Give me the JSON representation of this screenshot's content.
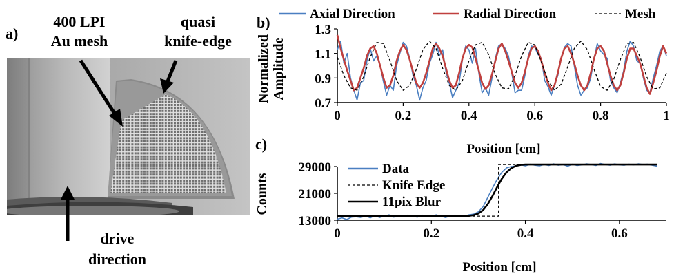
{
  "panel_a": {
    "label": "a)",
    "annotation_mesh_line1": "400 LPI",
    "annotation_mesh_line2": "Au mesh",
    "annotation_edge_line1": "quasi",
    "annotation_edge_line2": "knife-edge",
    "annotation_drive_line1": "drive",
    "annotation_drive_line2": "direction"
  },
  "chart_data": [
    {
      "panel": "b)",
      "type": "line",
      "xlabel": "Position [cm]",
      "ylabel_line1": "Normalized",
      "ylabel_line2": "Amplitude",
      "xlim": [
        0,
        1
      ],
      "ylim": [
        0.7,
        1.3
      ],
      "xticks": [
        "0",
        "0.2",
        "0.4",
        "0.6",
        "0.8",
        "1"
      ],
      "yticks": [
        "0.7",
        "0.9",
        "1.1",
        "1.3"
      ],
      "legend_position": "top",
      "series": [
        {
          "name": "Axial Direction",
          "color": "#4a7fc1",
          "x": [
            0,
            0.01,
            0.02,
            0.03,
            0.04,
            0.05,
            0.06,
            0.07,
            0.08,
            0.09,
            0.1,
            0.11,
            0.12,
            0.13,
            0.14,
            0.15,
            0.16,
            0.17,
            0.18,
            0.19,
            0.2,
            0.21,
            0.22,
            0.23,
            0.24,
            0.25,
            0.26,
            0.27,
            0.28,
            0.29,
            0.3,
            0.31,
            0.32,
            0.33,
            0.34,
            0.35,
            0.36,
            0.37,
            0.38,
            0.39,
            0.4,
            0.41,
            0.42,
            0.43,
            0.44,
            0.45,
            0.46,
            0.47,
            0.48,
            0.49,
            0.5,
            0.51,
            0.52,
            0.53,
            0.54,
            0.55,
            0.56,
            0.57,
            0.58,
            0.59,
            0.6,
            0.61,
            0.62,
            0.63,
            0.64,
            0.65,
            0.66,
            0.67,
            0.68,
            0.69,
            0.7,
            0.71,
            0.72,
            0.73,
            0.74,
            0.75,
            0.76,
            0.77,
            0.78,
            0.79,
            0.8,
            0.81,
            0.82,
            0.83,
            0.84,
            0.85,
            0.86,
            0.87,
            0.88,
            0.89,
            0.9,
            0.91,
            0.92,
            0.93,
            0.94,
            0.95,
            0.96,
            0.97,
            0.98,
            0.99,
            1.0
          ],
          "y": [
            1.13,
            1.2,
            1.02,
            1.1,
            0.9,
            0.8,
            0.72,
            0.86,
            0.88,
            1.04,
            1.14,
            1.04,
            1.08,
            1.0,
            0.87,
            0.76,
            0.84,
            0.8,
            1.0,
            1.1,
            1.19,
            1.16,
            1.06,
            0.92,
            0.84,
            0.72,
            0.82,
            0.88,
            1.02,
            1.09,
            1.19,
            1.08,
            1.13,
            0.95,
            0.86,
            0.74,
            0.8,
            0.86,
            1.05,
            1.16,
            1.13,
            1.02,
            1.14,
            0.94,
            0.78,
            0.82,
            0.76,
            0.9,
            1.06,
            1.16,
            1.18,
            1.14,
            1.08,
            0.94,
            0.78,
            0.8,
            0.8,
            0.92,
            1.08,
            1.16,
            1.15,
            1.09,
            1.06,
            0.88,
            0.83,
            0.76,
            0.84,
            0.92,
            1.06,
            1.15,
            1.18,
            1.16,
            1.0,
            0.84,
            0.76,
            0.8,
            0.82,
            0.9,
            1.06,
            1.18,
            1.12,
            1.09,
            1.06,
            0.88,
            0.82,
            0.78,
            0.86,
            0.96,
            1.12,
            1.2,
            1.16,
            1.04,
            1.02,
            0.9,
            0.8,
            0.78,
            0.9,
            1.0,
            1.12,
            1.16,
            1.08
          ]
        },
        {
          "name": "Radial Direction",
          "color": "#c0403e",
          "x": [
            0,
            0.01,
            0.02,
            0.03,
            0.04,
            0.05,
            0.06,
            0.07,
            0.08,
            0.09,
            0.1,
            0.11,
            0.12,
            0.13,
            0.14,
            0.15,
            0.16,
            0.17,
            0.18,
            0.19,
            0.2,
            0.21,
            0.22,
            0.23,
            0.24,
            0.25,
            0.26,
            0.27,
            0.28,
            0.29,
            0.3,
            0.31,
            0.32,
            0.33,
            0.34,
            0.35,
            0.36,
            0.37,
            0.38,
            0.39,
            0.4,
            0.41,
            0.42,
            0.43,
            0.44,
            0.45,
            0.46,
            0.47,
            0.48,
            0.49,
            0.5,
            0.51,
            0.52,
            0.53,
            0.54,
            0.55,
            0.56,
            0.57,
            0.58,
            0.59,
            0.6,
            0.61,
            0.62,
            0.63,
            0.64,
            0.65,
            0.66,
            0.67,
            0.68,
            0.69,
            0.7,
            0.71,
            0.72,
            0.73,
            0.74,
            0.75,
            0.76,
            0.77,
            0.78,
            0.79,
            0.8,
            0.81,
            0.82,
            0.83,
            0.84,
            0.85,
            0.86,
            0.87,
            0.88,
            0.89,
            0.9,
            0.91,
            0.92,
            0.93,
            0.94,
            0.95,
            0.96,
            0.97,
            0.98,
            0.99,
            1.0
          ],
          "y": [
            1.25,
            1.14,
            1.05,
            0.96,
            0.88,
            0.8,
            0.82,
            0.9,
            0.98,
            1.08,
            1.14,
            1.16,
            1.1,
            1.0,
            0.9,
            0.82,
            0.84,
            0.92,
            1.04,
            1.12,
            1.17,
            1.13,
            1.05,
            0.95,
            0.86,
            0.82,
            0.86,
            0.94,
            1.04,
            1.14,
            1.18,
            1.14,
            1.08,
            0.98,
            0.88,
            0.82,
            0.84,
            0.94,
            1.06,
            1.14,
            1.17,
            1.15,
            1.06,
            0.96,
            0.86,
            0.81,
            0.84,
            0.93,
            1.04,
            1.14,
            1.18,
            1.12,
            1.04,
            0.95,
            0.86,
            0.82,
            0.86,
            0.95,
            1.06,
            1.14,
            1.16,
            1.12,
            1.04,
            0.94,
            0.86,
            0.8,
            0.84,
            0.94,
            1.06,
            1.14,
            1.16,
            1.1,
            1.02,
            0.92,
            0.84,
            0.8,
            0.84,
            0.94,
            1.06,
            1.14,
            1.16,
            1.12,
            1.02,
            0.92,
            0.84,
            0.8,
            0.84,
            0.94,
            1.06,
            1.14,
            1.14,
            1.08,
            1.02,
            0.92,
            0.82,
            0.77,
            0.86,
            0.96,
            1.08,
            1.16,
            1.1
          ]
        },
        {
          "name": "Mesh",
          "color": "#000000",
          "dash": true,
          "x": [
            0,
            0.02,
            0.04,
            0.06,
            0.08,
            0.1,
            0.12,
            0.14,
            0.16,
            0.18,
            0.2,
            0.22,
            0.24,
            0.26,
            0.28,
            0.3,
            0.32,
            0.34,
            0.36,
            0.38,
            0.4,
            0.42,
            0.44,
            0.46,
            0.48,
            0.5,
            0.52,
            0.54,
            0.56,
            0.58,
            0.6,
            0.62,
            0.64,
            0.66,
            0.68,
            0.7,
            0.72,
            0.74,
            0.76,
            0.78,
            0.8,
            0.82,
            0.84,
            0.86,
            0.88,
            0.9,
            0.92,
            0.94,
            0.96,
            0.98,
            1.0
          ],
          "y": [
            1.07,
            0.92,
            0.82,
            0.8,
            0.91,
            1.07,
            1.19,
            1.18,
            1.04,
            0.88,
            0.8,
            0.84,
            0.97,
            1.13,
            1.2,
            1.14,
            0.98,
            0.84,
            0.8,
            0.88,
            1.04,
            1.17,
            1.19,
            1.09,
            0.93,
            0.82,
            0.81,
            0.92,
            1.08,
            1.19,
            1.17,
            1.03,
            0.88,
            0.8,
            0.85,
            0.99,
            1.14,
            1.2,
            1.13,
            0.97,
            0.83,
            0.8,
            0.89,
            1.05,
            1.18,
            1.19,
            1.07,
            0.91,
            0.81,
            0.82,
            0.94
          ]
        }
      ]
    },
    {
      "panel": "c)",
      "type": "line",
      "xlabel": "Position [cm]",
      "ylabel": "Counts",
      "xlim": [
        0,
        0.7
      ],
      "ylim": [
        13000,
        29000
      ],
      "xticks": [
        "0",
        "0.2",
        "0.4",
        "0.6"
      ],
      "yticks": [
        "13000",
        "21000",
        "29000"
      ],
      "legend_position": "top-left",
      "series": [
        {
          "name": "Data",
          "color": "#4a7fc1",
          "x": [
            0,
            0.01,
            0.02,
            0.03,
            0.04,
            0.05,
            0.06,
            0.07,
            0.08,
            0.09,
            0.1,
            0.11,
            0.12,
            0.13,
            0.14,
            0.15,
            0.16,
            0.17,
            0.18,
            0.19,
            0.2,
            0.21,
            0.22,
            0.23,
            0.24,
            0.25,
            0.26,
            0.27,
            0.28,
            0.29,
            0.3,
            0.31,
            0.32,
            0.33,
            0.34,
            0.35,
            0.36,
            0.37,
            0.38,
            0.39,
            0.4,
            0.41,
            0.42,
            0.43,
            0.44,
            0.45,
            0.46,
            0.47,
            0.48,
            0.49,
            0.5,
            0.51,
            0.52,
            0.53,
            0.54,
            0.55,
            0.56,
            0.57,
            0.58,
            0.59,
            0.6,
            0.61,
            0.62,
            0.63,
            0.64,
            0.65,
            0.66,
            0.67,
            0.68
          ],
          "y": [
            13300,
            13700,
            13200,
            13900,
            14000,
            13800,
            14300,
            13700,
            14400,
            13800,
            14200,
            14600,
            13900,
            14400,
            14100,
            14500,
            14200,
            13900,
            14500,
            14300,
            14000,
            14600,
            14200,
            13800,
            14200,
            14500,
            14300,
            14200,
            14600,
            14800,
            15500,
            17000,
            19800,
            22600,
            25200,
            27300,
            28600,
            29000,
            29200,
            29500,
            29200,
            29700,
            29400,
            29200,
            29600,
            29300,
            29800,
            29400,
            29600,
            29100,
            29700,
            29300,
            29500,
            29800,
            29600,
            29300,
            29900,
            29600,
            29400,
            29800,
            29500,
            29400,
            29700,
            29500,
            29800,
            29600,
            29700,
            29400,
            29100
          ]
        },
        {
          "name": "Knife Edge",
          "color": "#000000",
          "dash": true,
          "x": [
            0,
            0.343,
            0.343,
            0.68
          ],
          "y": [
            14200,
            14200,
            29600,
            29600
          ]
        },
        {
          "name": "11pix Blur",
          "color": "#000000",
          "x": [
            0,
            0.28,
            0.29,
            0.3,
            0.31,
            0.32,
            0.33,
            0.34,
            0.35,
            0.36,
            0.37,
            0.38,
            0.39,
            0.4,
            0.68
          ],
          "y": [
            14300,
            14300,
            14500,
            15000,
            16000,
            17800,
            20200,
            22900,
            25400,
            27300,
            28500,
            29200,
            29500,
            29600,
            29600
          ]
        }
      ]
    }
  ]
}
